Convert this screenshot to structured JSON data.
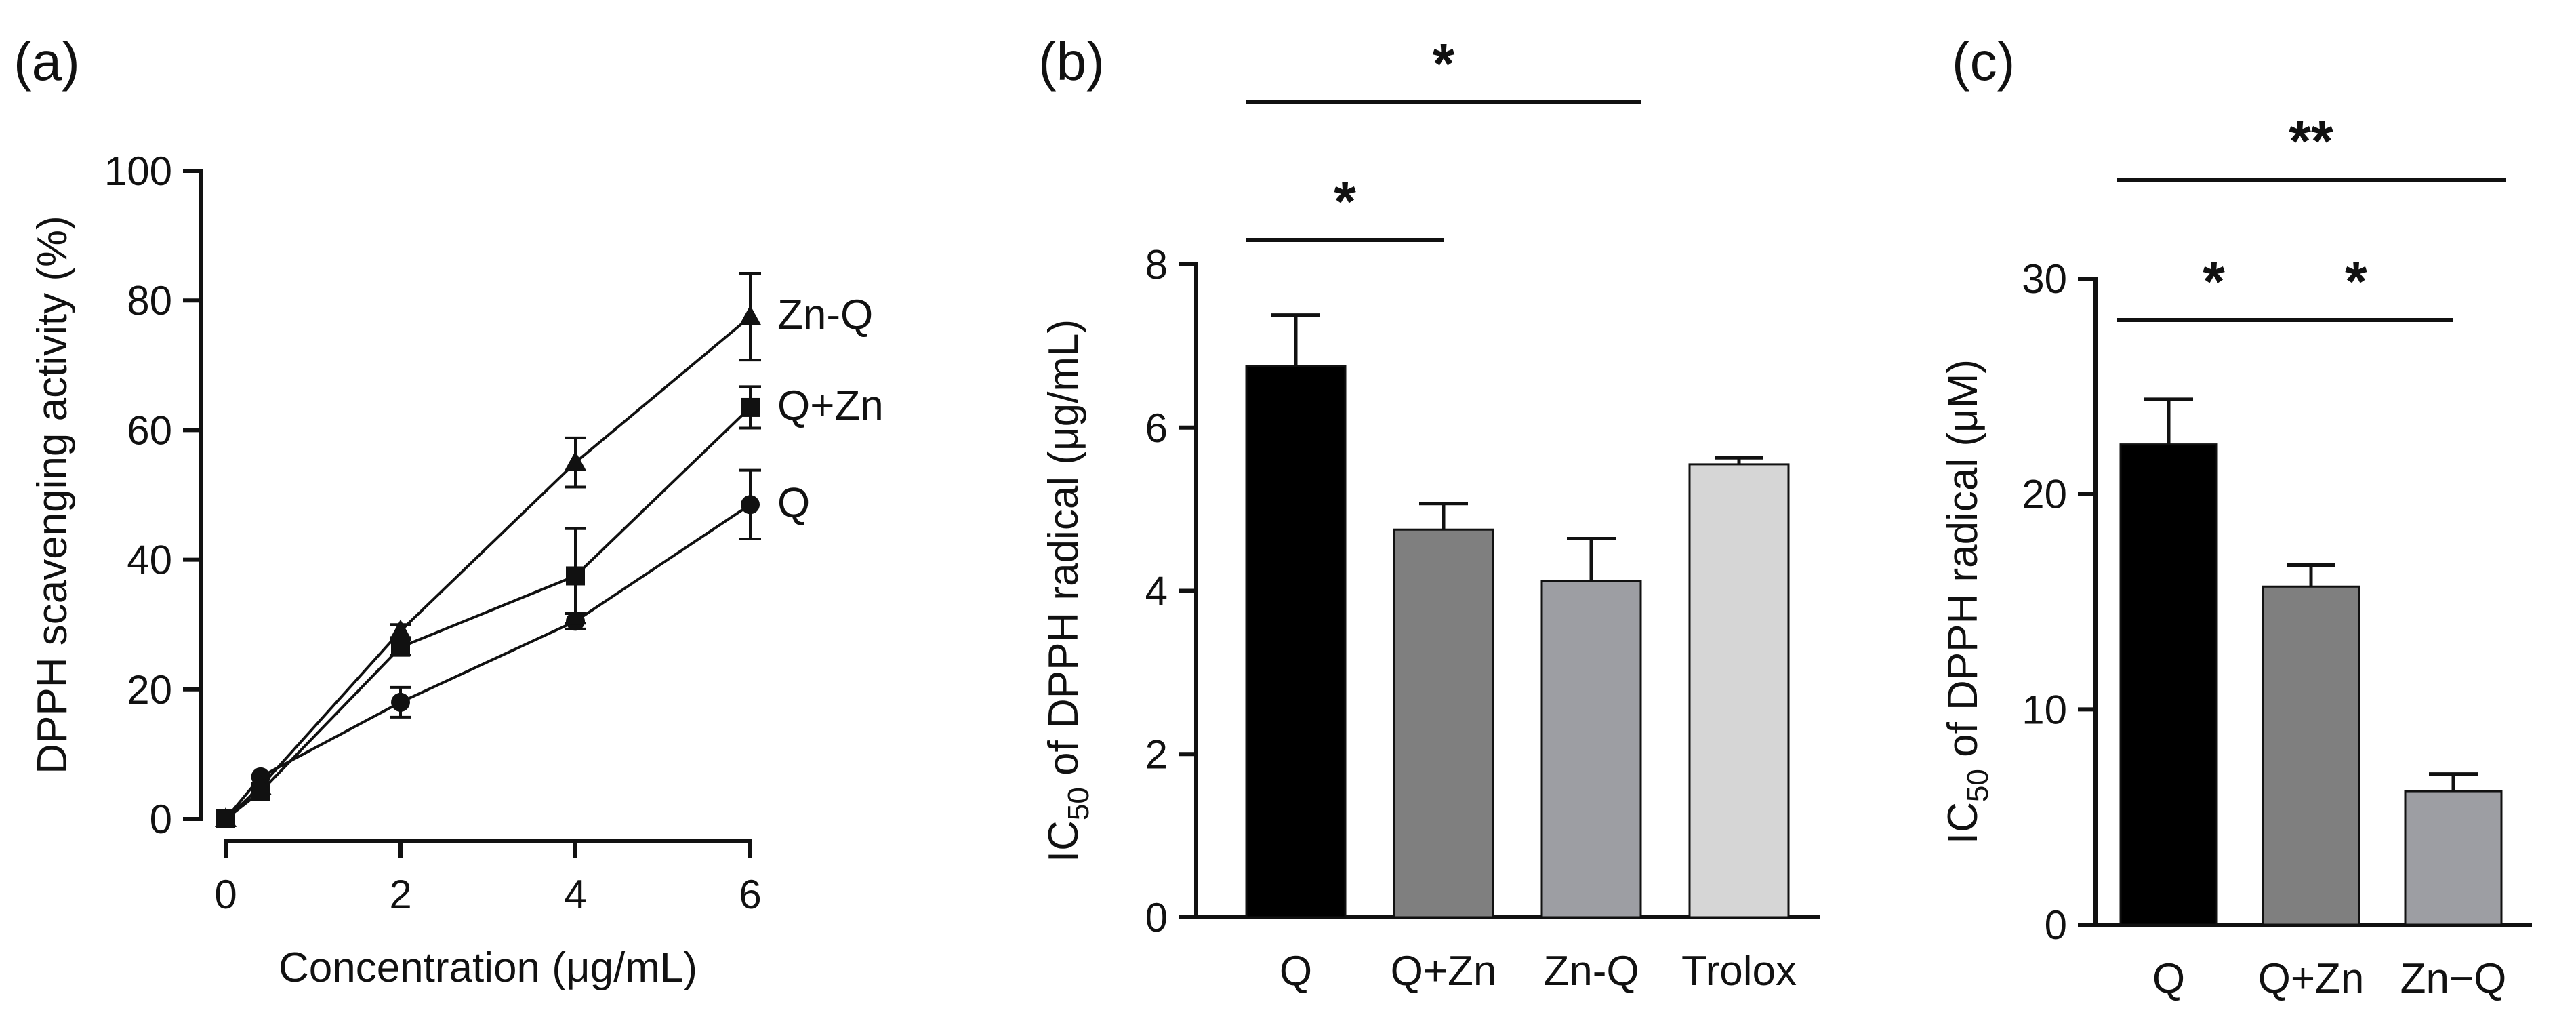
{
  "chart_data": [
    {
      "panel": "(a)",
      "type": "line",
      "xlabel": "Concentration (μg/mL)",
      "ylabel": "DPPH scavenging activity (%)",
      "xlim": [
        0,
        6
      ],
      "ylim": [
        0,
        100
      ],
      "xticks": [
        "0",
        "2",
        "4",
        "6"
      ],
      "yticks": [
        "0",
        "20",
        "40",
        "60",
        "80",
        "100"
      ],
      "x": [
        0,
        0.4,
        2,
        4,
        6
      ],
      "series": [
        {
          "name": "Q",
          "marker": "circle",
          "values": [
            0,
            6.5,
            18,
            30.5,
            48.5
          ],
          "errors": [
            0,
            0.8,
            2.3,
            1.2,
            5.3
          ]
        },
        {
          "name": "Q+Zn",
          "marker": "square",
          "values": [
            0,
            4.2,
            26.5,
            37.5,
            63.5
          ],
          "errors": [
            0,
            0.6,
            1.2,
            7.3,
            3.2
          ]
        },
        {
          "name": "Zn-Q",
          "marker": "triangle",
          "values": [
            0,
            5,
            29,
            55,
            77.5
          ],
          "errors": [
            0,
            0.6,
            1.0,
            3.8,
            6.7
          ]
        }
      ],
      "grid": false,
      "legend": "inline-right"
    },
    {
      "panel": "(b)",
      "type": "bar",
      "ylabel_main": "IC",
      "ylabel_sub": "50",
      "ylabel_rest": " of DPPH radical (μg/mL)",
      "ylim": [
        0,
        8
      ],
      "yticks": [
        "0",
        "2",
        "4",
        "6",
        "8"
      ],
      "categories": [
        "Q",
        "Q+Zn",
        "Zn-Q",
        "Trolox"
      ],
      "values": [
        6.75,
        4.75,
        4.12,
        5.55
      ],
      "errors": [
        0.63,
        0.32,
        0.52,
        0.08
      ],
      "colors": [
        "#000000",
        "#7f7f7f",
        "#9d9ea3",
        "#d6d6d6"
      ],
      "significance": [
        {
          "from": 0,
          "to": 1,
          "label": "*",
          "level": 1
        },
        {
          "from": 0,
          "to": 2,
          "label": "*",
          "level": 2
        }
      ]
    },
    {
      "panel": "(c)",
      "type": "bar",
      "ylabel_main": "IC",
      "ylabel_sub": "50",
      "ylabel_rest": " of DPPH radical (μM)",
      "ylim": [
        0,
        30
      ],
      "yticks": [
        "0",
        "10",
        "20",
        "30"
      ],
      "categories": [
        "Q",
        "Q+Zn",
        "Zn−Q"
      ],
      "values": [
        22.3,
        15.7,
        6.2
      ],
      "errors": [
        2.1,
        1.0,
        0.8
      ],
      "colors": [
        "#000000",
        "#7f7f7f",
        "#9d9ea3"
      ],
      "significance": [
        {
          "from": 0,
          "to": 1,
          "label": "*",
          "level": 1
        },
        {
          "from": 1,
          "to": 2,
          "label": "*",
          "level": 1
        },
        {
          "from": 0,
          "to": 2,
          "label": "**",
          "level": 2
        }
      ]
    }
  ]
}
